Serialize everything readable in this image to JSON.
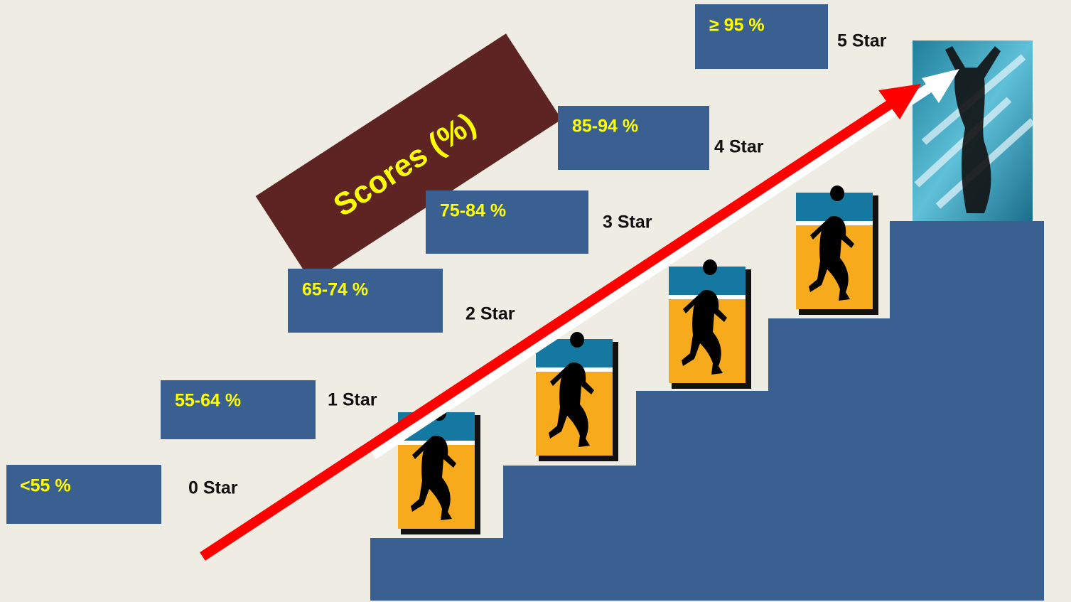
{
  "title": "Scores (%)",
  "levels": [
    {
      "range": "<55 %",
      "stars": "0 Star"
    },
    {
      "range": "55-64 %",
      "stars": "1 Star"
    },
    {
      "range": "65-74 %",
      "stars": "2 Star"
    },
    {
      "range": "75-84 %",
      "stars": "3 Star"
    },
    {
      "range": "85-94 %",
      "stars": "4 Star"
    },
    {
      "range": "≥ 95 %",
      "stars": "5 Star"
    }
  ]
}
